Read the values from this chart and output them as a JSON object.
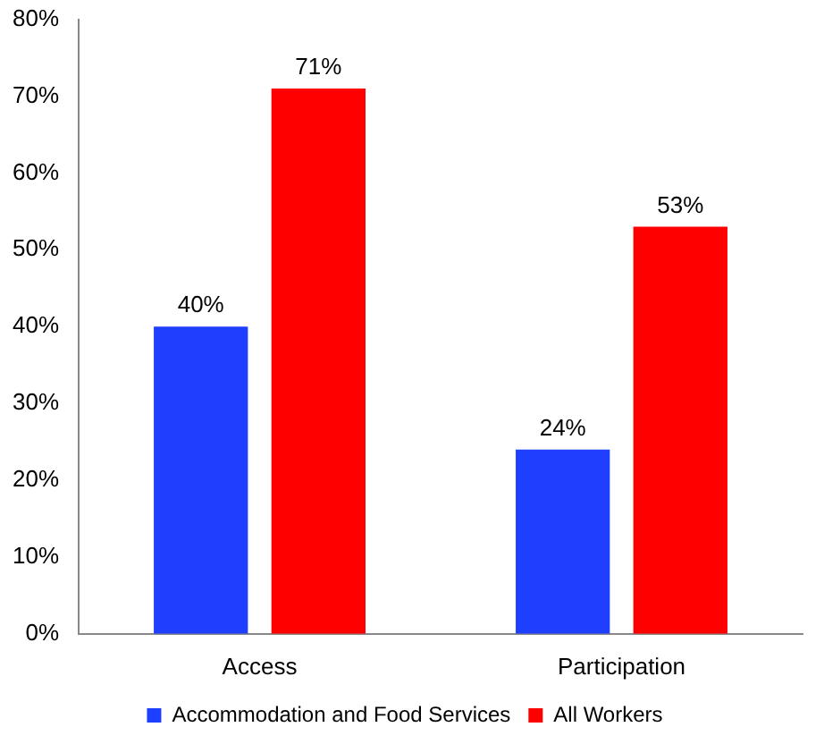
{
  "chart_data": {
    "type": "bar",
    "categories": [
      "Access",
      "Participation"
    ],
    "series": [
      {
        "name": "Accommodation and Food Services",
        "color": "#1f3fff",
        "values": [
          40,
          24
        ],
        "value_labels": [
          "40%",
          "24%"
        ]
      },
      {
        "name": "All Workers",
        "color": "#ff0000",
        "values": [
          71,
          53
        ],
        "value_labels": [
          "71%",
          "53%"
        ]
      }
    ],
    "ylim": [
      0,
      80
    ],
    "yticks": [
      {
        "value": 0,
        "label": "0%"
      },
      {
        "value": 10,
        "label": "10%"
      },
      {
        "value": 20,
        "label": "20%"
      },
      {
        "value": 30,
        "label": "30%"
      },
      {
        "value": 40,
        "label": "40%"
      },
      {
        "value": 50,
        "label": "50%"
      },
      {
        "value": 60,
        "label": "60%"
      },
      {
        "value": 70,
        "label": "70%"
      },
      {
        "value": 80,
        "label": "80%"
      }
    ],
    "grid": false,
    "legend": "bottom"
  }
}
